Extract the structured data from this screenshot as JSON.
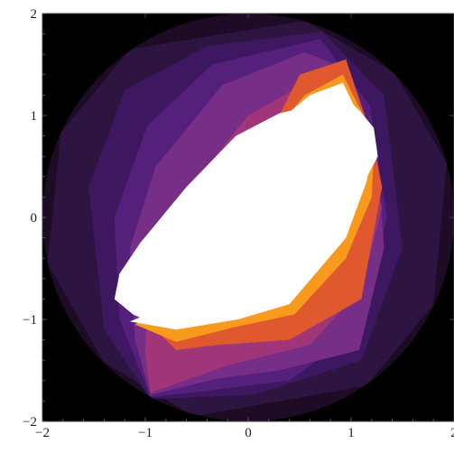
{
  "chart_data": {
    "type": "heatmap",
    "title": "",
    "xlabel": "",
    "ylabel": "",
    "xlim": [
      -2,
      2
    ],
    "ylim": [
      -2,
      2
    ],
    "x_ticks": [
      {
        "value": -2,
        "label": "−2"
      },
      {
        "value": -1,
        "label": "−1"
      },
      {
        "value": 0,
        "label": "0"
      },
      {
        "value": 1,
        "label": "1"
      },
      {
        "value": 2,
        "label": "2"
      }
    ],
    "y_ticks": [
      {
        "value": 2,
        "label": "2"
      },
      {
        "value": 1,
        "label": "1"
      },
      {
        "value": 0,
        "label": "0"
      },
      {
        "value": -1,
        "label": "−1"
      },
      {
        "value": -2,
        "label": "−2"
      }
    ],
    "domain": {
      "shape": "disk",
      "center": [
        0,
        0
      ],
      "radius": 2
    },
    "grid": false,
    "colors": {
      "outside": "#000000",
      "levels": [
        "#1e0c26",
        "#2e1440",
        "#3d1860",
        "#55207c",
        "#762e86",
        "#a0357a",
        "#e0582e",
        "#f79a1e",
        "#ffffff"
      ]
    },
    "regions": [
      {
        "name": "level-0",
        "polygon": [
          [
            -0.53,
            -1.95
          ],
          [
            -1.4,
            -1.42
          ],
          [
            -1.95,
            -0.45
          ],
          [
            -1.82,
            0.83
          ],
          [
            -1.15,
            1.65
          ],
          [
            0.55,
            1.93
          ],
          [
            1.42,
            1.42
          ],
          [
            1.93,
            0.53
          ],
          [
            1.8,
            -0.85
          ],
          [
            1.15,
            -1.65
          ]
        ]
      },
      {
        "name": "level-1",
        "polygon": [
          [
            -0.95,
            -1.78
          ],
          [
            -1.4,
            -1.1
          ],
          [
            -1.55,
            0.3
          ],
          [
            -1.2,
            1.25
          ],
          [
            -0.4,
            1.68
          ],
          [
            0.72,
            1.82
          ],
          [
            1.32,
            1.2
          ],
          [
            1.5,
            -0.3
          ],
          [
            1.1,
            -1.4
          ],
          [
            0.05,
            -1.74
          ]
        ]
      },
      {
        "name": "level-2",
        "polygon": [
          [
            -0.95,
            -1.76
          ],
          [
            -1.25,
            -1.0
          ],
          [
            -1.3,
            0.0
          ],
          [
            -0.98,
            0.9
          ],
          [
            -0.35,
            1.5
          ],
          [
            0.7,
            1.75
          ],
          [
            1.18,
            1.1
          ],
          [
            1.35,
            0.0
          ],
          [
            1.08,
            -1.1
          ],
          [
            0.4,
            -1.6
          ],
          [
            -0.4,
            -1.7
          ]
        ]
      },
      {
        "name": "level-3",
        "polygon": [
          [
            -0.95,
            -1.74
          ],
          [
            -1.1,
            -1.2
          ],
          [
            -1.15,
            -0.3
          ],
          [
            -0.9,
            0.5
          ],
          [
            -0.25,
            1.3
          ],
          [
            0.55,
            1.62
          ],
          [
            0.85,
            1.5
          ],
          [
            1.25,
            0.7
          ],
          [
            1.32,
            -0.3
          ],
          [
            1.08,
            -1.3
          ],
          [
            0.3,
            -1.5
          ],
          [
            -0.3,
            -1.58
          ]
        ]
      },
      {
        "name": "level-4",
        "polygon": [
          [
            -0.95,
            -1.72
          ],
          [
            -1.0,
            -1.35
          ],
          [
            -0.98,
            -0.7
          ],
          [
            -0.6,
            0.25
          ],
          [
            0.0,
            1.0
          ],
          [
            0.7,
            1.4
          ],
          [
            0.92,
            1.3
          ],
          [
            1.18,
            0.55
          ],
          [
            1.3,
            0.1
          ],
          [
            1.1,
            -0.7
          ],
          [
            0.6,
            -1.25
          ],
          [
            -0.2,
            -1.45
          ]
        ]
      },
      {
        "name": "level-5",
        "polygon": [
          [
            -1.0,
            -1.0
          ],
          [
            -0.75,
            -0.75
          ],
          [
            -0.55,
            -0.3
          ],
          [
            -0.2,
            0.4
          ],
          [
            0.25,
            0.9
          ],
          [
            0.5,
            1.4
          ],
          [
            0.95,
            1.55
          ],
          [
            1.15,
            0.95
          ],
          [
            1.25,
            0.55
          ],
          [
            1.3,
            0.3
          ],
          [
            1.1,
            -0.8
          ],
          [
            0.4,
            -1.2
          ],
          [
            -0.3,
            -1.25
          ],
          [
            -0.7,
            -1.3
          ]
        ]
      },
      {
        "name": "level-6",
        "polygon": [
          [
            -1.1,
            -1.05
          ],
          [
            -0.98,
            -0.98
          ],
          [
            -0.85,
            -0.68
          ],
          [
            -0.6,
            -0.2
          ],
          [
            -0.15,
            0.45
          ],
          [
            0.3,
            0.9
          ],
          [
            0.55,
            1.2
          ],
          [
            0.92,
            1.4
          ],
          [
            1.12,
            1.0
          ],
          [
            1.22,
            0.62
          ],
          [
            1.2,
            0.2
          ],
          [
            0.95,
            -0.4
          ],
          [
            0.45,
            -0.95
          ],
          [
            -0.15,
            -1.08
          ],
          [
            -0.7,
            -1.22
          ]
        ]
      },
      {
        "name": "level-7",
        "polygon": [
          [
            -1.15,
            -1.02
          ],
          [
            -0.98,
            -0.95
          ],
          [
            -0.88,
            -0.62
          ],
          [
            -0.6,
            -0.1
          ],
          [
            -0.15,
            0.55
          ],
          [
            0.3,
            0.95
          ],
          [
            0.6,
            1.2
          ],
          [
            0.92,
            1.32
          ],
          [
            1.1,
            0.95
          ],
          [
            1.2,
            0.62
          ],
          [
            1.15,
            0.35
          ],
          [
            0.95,
            -0.2
          ],
          [
            0.4,
            -0.85
          ],
          [
            -0.1,
            -1.0
          ],
          [
            -0.7,
            -1.1
          ]
        ]
      },
      {
        "name": "level-8",
        "polygon": [
          [
            -1.25,
            -0.55
          ],
          [
            -1.05,
            -0.25
          ],
          [
            -0.6,
            0.3
          ],
          [
            -0.12,
            0.8
          ],
          [
            0.3,
            1.02
          ],
          [
            0.7,
            1.12
          ],
          [
            0.92,
            1.2
          ],
          [
            1.08,
            1.05
          ],
          [
            1.22,
            0.88
          ],
          [
            1.26,
            0.6
          ],
          [
            1.05,
            0.2
          ],
          [
            0.6,
            -0.4
          ],
          [
            0.2,
            -0.85
          ],
          [
            -0.2,
            -1.0
          ],
          [
            -0.62,
            -1.08
          ],
          [
            -0.9,
            -1.05
          ],
          [
            -1.12,
            -0.95
          ],
          [
            -1.3,
            -0.8
          ]
        ]
      }
    ]
  }
}
